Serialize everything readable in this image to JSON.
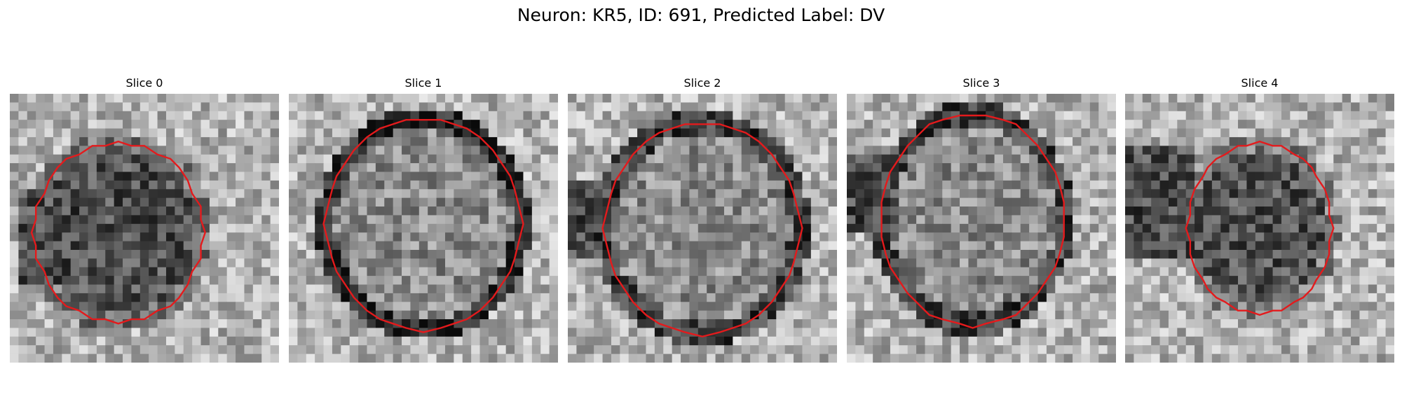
{
  "figure": {
    "title": "Neuron: KR5, ID: 691, Predicted Label: DV"
  },
  "colors": {
    "contour": "#e41a1c",
    "background": "#ffffff"
  },
  "image_style": "grayscale pixel grid (microscopy crop)",
  "panels": [
    {
      "title": "Slice 0"
    },
    {
      "title": "Slice 1"
    },
    {
      "title": "Slice 2"
    },
    {
      "title": "Slice 3"
    },
    {
      "title": "Slice 4"
    }
  ]
}
